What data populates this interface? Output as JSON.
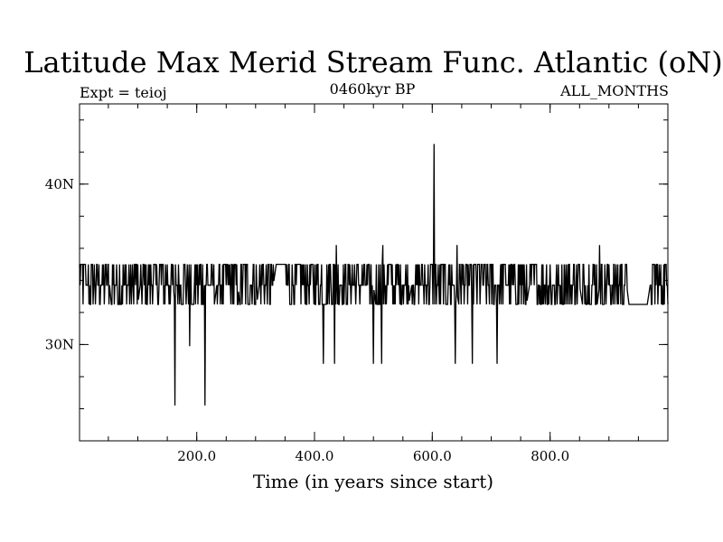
{
  "chart_data": {
    "type": "line",
    "title": "Latitude Max Merid Stream Func. Atlantic (oN)",
    "left_label": "Expt = teioj",
    "center_label": "0460kyr BP",
    "right_label": "ALL_MONTHS",
    "xlabel": "Time (in years since start)",
    "ylabel": "",
    "xlim": [
      1,
      1000
    ],
    "ylim": [
      24.0,
      45.0
    ],
    "x_ticks": [
      {
        "value": 200,
        "label": "200.0"
      },
      {
        "value": 400,
        "label": "400.0"
      },
      {
        "value": 600,
        "label": "600.0"
      },
      {
        "value": 800,
        "label": "800.0"
      }
    ],
    "x_minor_step": 50,
    "y_ticks": [
      {
        "value": 30,
        "label": "30N"
      },
      {
        "value": 40,
        "label": "40N"
      }
    ],
    "y_minor_step": 2,
    "grid": false,
    "line_color": "#000000",
    "levels": [
      32.5,
      33.7,
      35.0,
      36.2
    ],
    "segments": [
      [
        1,
        33.7
      ],
      [
        12,
        33.7
      ],
      [
        52,
        33.7
      ],
      [
        55,
        32.5
      ],
      [
        100,
        32.5
      ],
      [
        104,
        33.7
      ],
      [
        160,
        33.7
      ],
      [
        163,
        32.5
      ],
      [
        230,
        32.5
      ],
      [
        234,
        33.7
      ],
      [
        270,
        33.7
      ],
      [
        273,
        32.5
      ],
      [
        302,
        32.5
      ],
      [
        306,
        33.7
      ],
      [
        330,
        33.7
      ],
      [
        335,
        35.0
      ],
      [
        350,
        35.0
      ],
      [
        355,
        33.7
      ],
      [
        500,
        33.7
      ],
      [
        504,
        32.5
      ],
      [
        560,
        32.5
      ],
      [
        565,
        33.7
      ],
      [
        640,
        33.7
      ],
      [
        645,
        32.5
      ],
      [
        760,
        32.5
      ],
      [
        765,
        33.7
      ],
      [
        850,
        33.7
      ],
      [
        855,
        32.5
      ],
      [
        880,
        32.5
      ],
      [
        884,
        33.7
      ],
      [
        930,
        33.7
      ],
      [
        934,
        32.5
      ],
      [
        965,
        32.5
      ],
      [
        970,
        33.7
      ],
      [
        1000,
        33.7
      ]
    ],
    "busy_intervals": [
      [
        1,
        12
      ],
      [
        16,
        52
      ],
      [
        56,
        100
      ],
      [
        105,
        160
      ],
      [
        164,
        190
      ],
      [
        194,
        230
      ],
      [
        235,
        270
      ],
      [
        274,
        302
      ],
      [
        307,
        330
      ],
      [
        351,
        500
      ],
      [
        505,
        560
      ],
      [
        566,
        640
      ],
      [
        646,
        760
      ],
      [
        766,
        850
      ],
      [
        856,
        880
      ],
      [
        885,
        930
      ],
      [
        971,
        1000
      ]
    ],
    "spikes": [
      {
        "x": 163,
        "y": 26.2
      },
      {
        "x": 188,
        "y": 29.9
      },
      {
        "x": 214,
        "y": 26.2
      },
      {
        "x": 415,
        "y": 28.8
      },
      {
        "x": 434,
        "y": 28.8
      },
      {
        "x": 437,
        "y": 36.2
      },
      {
        "x": 500,
        "y": 28.8
      },
      {
        "x": 514,
        "y": 28.8
      },
      {
        "x": 516,
        "y": 36.2
      },
      {
        "x": 603,
        "y": 42.5
      },
      {
        "x": 639,
        "y": 28.8
      },
      {
        "x": 642,
        "y": 36.2
      },
      {
        "x": 668,
        "y": 28.8
      },
      {
        "x": 710,
        "y": 28.8
      },
      {
        "x": 884,
        "y": 36.2
      }
    ]
  }
}
